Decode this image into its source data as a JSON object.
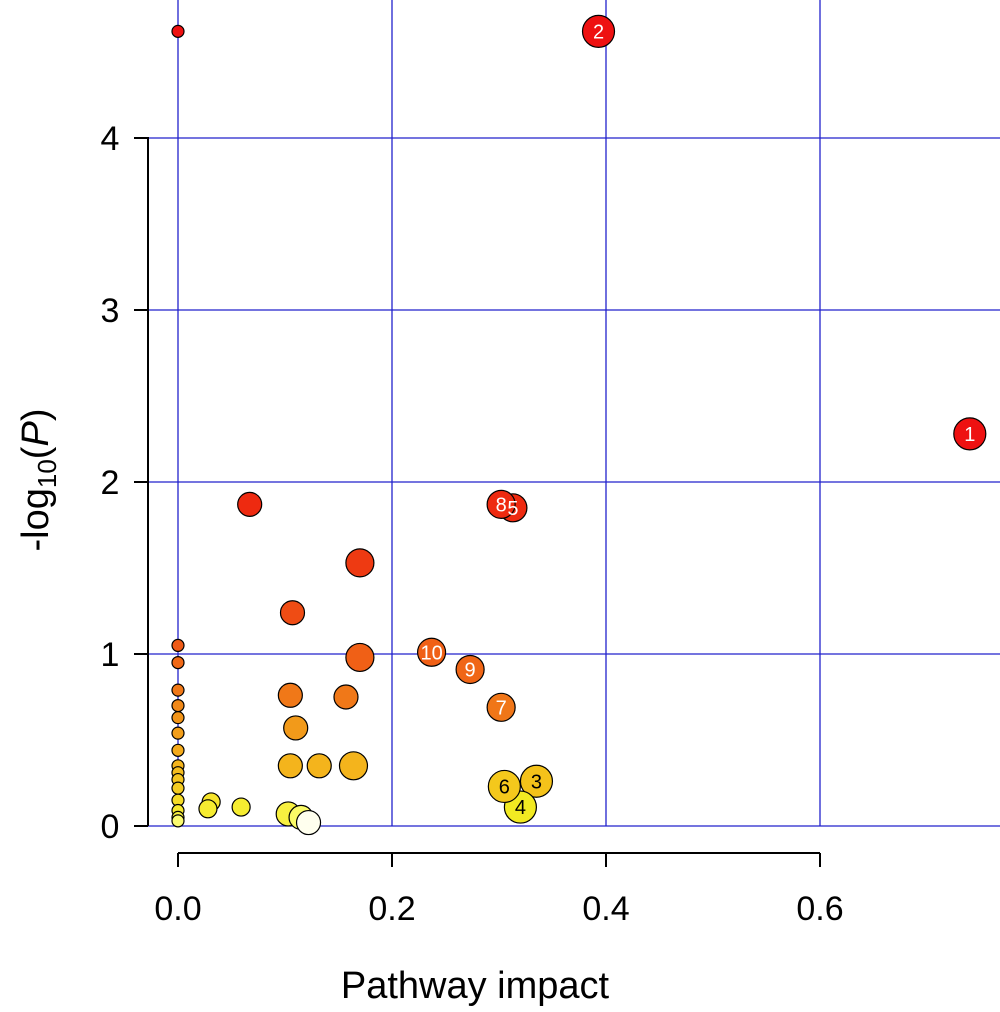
{
  "chart_data": {
    "type": "scatter",
    "title": "",
    "xlabel": "Pathway impact",
    "ylabel": {
      "prefix": "-log",
      "subscript": "10",
      "open": "(",
      "italic": "P",
      "close": ")"
    },
    "xlim": [
      -0.03,
      0.76
    ],
    "ylim": [
      0,
      4.75
    ],
    "x_ticks": [
      0.0,
      0.2,
      0.4,
      0.6
    ],
    "x_tick_labels": [
      "0.0",
      "0.2",
      "0.4",
      "0.6"
    ],
    "y_ticks": [
      0,
      1,
      2,
      3,
      4
    ],
    "y_tick_labels": [
      "0",
      "1",
      "2",
      "3",
      "4"
    ],
    "grid": true,
    "grid_color": "#2222cc",
    "colors": {
      "high": "#ee1111",
      "low": "#ffff44",
      "none": "#ffffee"
    },
    "points": [
      {
        "x": 0.74,
        "y": 2.28,
        "size": "xl",
        "label": "1",
        "color": "#ee1111"
      },
      {
        "x": 0.393,
        "y": 4.62,
        "size": "xl",
        "label": "2",
        "color": "#ee1111"
      },
      {
        "x": 0.335,
        "y": 0.26,
        "size": "xl",
        "label": "3",
        "color": "#f4c21a"
      },
      {
        "x": 0.32,
        "y": 0.11,
        "size": "xl",
        "label": "4",
        "color": "#f2ea22"
      },
      {
        "x": 0.313,
        "y": 1.85,
        "size": "l",
        "label": "5",
        "color": "#ee2a10"
      },
      {
        "x": 0.305,
        "y": 0.23,
        "size": "xl",
        "label": "6",
        "color": "#f4c81c"
      },
      {
        "x": 0.302,
        "y": 0.69,
        "size": "l",
        "label": "7",
        "color": "#f07618"
      },
      {
        "x": 0.302,
        "y": 1.87,
        "size": "l",
        "label": "8",
        "color": "#ee2a10"
      },
      {
        "x": 0.273,
        "y": 0.91,
        "size": "l",
        "label": "9",
        "color": "#f06616"
      },
      {
        "x": 0.237,
        "y": 1.01,
        "size": "l",
        "label": "10",
        "color": "#f06016"
      },
      {
        "x": 0.0,
        "y": 4.62,
        "size": "s",
        "color": "#ee1111"
      },
      {
        "x": 0.067,
        "y": 1.87,
        "size": "m",
        "color": "#ee2a10"
      },
      {
        "x": 0.17,
        "y": 1.53,
        "size": "l",
        "color": "#ee3a12"
      },
      {
        "x": 0.107,
        "y": 1.24,
        "size": "m",
        "color": "#ef4c14"
      },
      {
        "x": 0.17,
        "y": 0.98,
        "size": "l",
        "color": "#f06016"
      },
      {
        "x": 0.105,
        "y": 0.76,
        "size": "m",
        "color": "#f07818"
      },
      {
        "x": 0.157,
        "y": 0.75,
        "size": "m",
        "color": "#f07818"
      },
      {
        "x": 0.11,
        "y": 0.57,
        "size": "m",
        "color": "#f29a1a"
      },
      {
        "x": 0.105,
        "y": 0.35,
        "size": "m",
        "color": "#f4b41c"
      },
      {
        "x": 0.132,
        "y": 0.35,
        "size": "m",
        "color": "#f4b41c"
      },
      {
        "x": 0.164,
        "y": 0.35,
        "size": "l",
        "color": "#f4b41c"
      },
      {
        "x": 0.103,
        "y": 0.07,
        "size": "m",
        "color": "#f8f040"
      },
      {
        "x": 0.115,
        "y": 0.05,
        "size": "m",
        "color": "#fafa66"
      },
      {
        "x": 0.122,
        "y": 0.02,
        "size": "m",
        "color": "#ffffee"
      },
      {
        "x": 0.059,
        "y": 0.11,
        "size": "s2",
        "color": "#f6ec30"
      },
      {
        "x": 0.031,
        "y": 0.14,
        "size": "s2",
        "color": "#f6e42c"
      },
      {
        "x": 0.028,
        "y": 0.1,
        "size": "s2",
        "color": "#f6ec30"
      },
      {
        "x": 0.0,
        "y": 1.05,
        "size": "s",
        "color": "#ef5a16"
      },
      {
        "x": 0.0,
        "y": 0.95,
        "size": "s",
        "color": "#f06816"
      },
      {
        "x": 0.0,
        "y": 0.79,
        "size": "s",
        "color": "#f07818"
      },
      {
        "x": 0.0,
        "y": 0.7,
        "size": "s",
        "color": "#f08818"
      },
      {
        "x": 0.0,
        "y": 0.63,
        "size": "s",
        "color": "#f29418"
      },
      {
        "x": 0.0,
        "y": 0.54,
        "size": "s",
        "color": "#f29e1a"
      },
      {
        "x": 0.0,
        "y": 0.44,
        "size": "s",
        "color": "#f4aa1c"
      },
      {
        "x": 0.0,
        "y": 0.35,
        "size": "s",
        "color": "#f4b41c"
      },
      {
        "x": 0.0,
        "y": 0.31,
        "size": "s",
        "color": "#f4bc1e"
      },
      {
        "x": 0.0,
        "y": 0.27,
        "size": "s",
        "color": "#f4c420"
      },
      {
        "x": 0.0,
        "y": 0.22,
        "size": "s",
        "color": "#f4cc22"
      },
      {
        "x": 0.0,
        "y": 0.15,
        "size": "s",
        "color": "#f6dc28"
      },
      {
        "x": 0.0,
        "y": 0.09,
        "size": "s",
        "color": "#f6e830"
      },
      {
        "x": 0.0,
        "y": 0.05,
        "size": "s",
        "color": "#f8f040"
      },
      {
        "x": 0.0,
        "y": 0.03,
        "size": "s",
        "color": "#fafa70"
      }
    ]
  }
}
